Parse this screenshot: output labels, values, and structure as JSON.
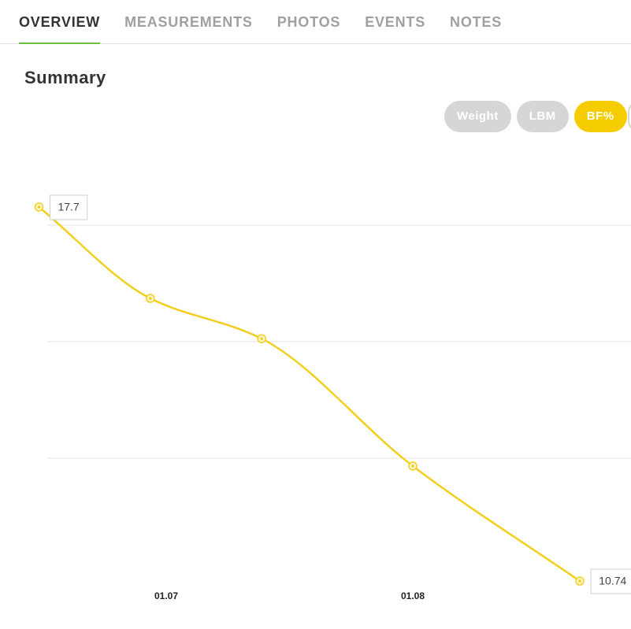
{
  "tabs": [
    "OVERVIEW",
    "MEASUREMENTS",
    "PHOTOS",
    "EVENTS",
    "NOTES"
  ],
  "active_tab": 0,
  "section_title": "Summary",
  "toggles": [
    "Weight",
    "LBM",
    "BF%"
  ],
  "active_toggle": 2,
  "chart_data": {
    "type": "line",
    "x": [
      -16,
      -2,
      12,
      31,
      52
    ],
    "xlim": [
      -18,
      58
    ],
    "xticks": [
      {
        "value": 0,
        "label": "01.07"
      },
      {
        "value": 31,
        "label": "01.08"
      }
    ],
    "series": [
      {
        "name": "BF%",
        "color": "#f2cf1f",
        "values": [
          17.7,
          16.0,
          15.25,
          12.88,
          10.74
        ],
        "value_labels": [
          "17.7",
          null,
          null,
          null,
          "10.74"
        ]
      }
    ],
    "ylim": [
      10.5,
      18
    ]
  }
}
